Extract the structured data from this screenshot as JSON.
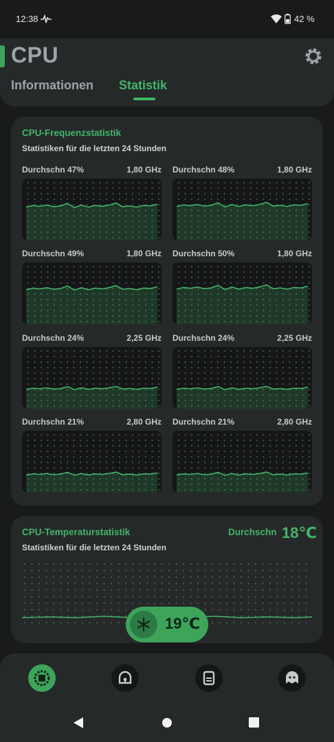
{
  "status_bar": {
    "time": "12:38",
    "battery": "42 %"
  },
  "header": {
    "title": "CPU",
    "tabs": [
      {
        "label": "Informationen",
        "active": false
      },
      {
        "label": "Statistik",
        "active": true
      }
    ]
  },
  "freq_card": {
    "title": "CPU-Frequenzstatistik",
    "subtitle": "Statistiken für die letzten 24 Stunden",
    "cores": [
      {
        "label": "Durchschn 47%",
        "value": "1,80 GHz",
        "level": 0.47
      },
      {
        "label": "Durchschn 48%",
        "value": "1,80 GHz",
        "level": 0.48
      },
      {
        "label": "Durchschn 49%",
        "value": "1,80 GHz",
        "level": 0.49
      },
      {
        "label": "Durchschn 50%",
        "value": "1,80 GHz",
        "level": 0.5
      },
      {
        "label": "Durchschn 24%",
        "value": "2,25 GHz",
        "level": 0.24
      },
      {
        "label": "Durchschn 24%",
        "value": "2,25 GHz",
        "level": 0.24
      },
      {
        "label": "Durchschn 21%",
        "value": "2,80 GHz",
        "level": 0.21
      },
      {
        "label": "Durchschn 21%",
        "value": "2,80 GHz",
        "level": 0.21
      }
    ]
  },
  "temp_card": {
    "title": "CPU-Temperaturstatistik",
    "subtitle": "Statistiken für die letzten 24 Stunden",
    "avg_label": "Durchschn",
    "avg_value": "18℃"
  },
  "current_temp": "19℃",
  "bottom_nav": {
    "items": [
      {
        "icon": "cpu-chip-icon",
        "active": true
      },
      {
        "icon": "thermometer-icon",
        "active": false
      },
      {
        "icon": "battery-icon",
        "active": false
      },
      {
        "icon": "ghost-icon",
        "active": false
      }
    ]
  },
  "colors": {
    "accent": "#43b468",
    "background": "#181a1b",
    "card": "#26292a"
  }
}
